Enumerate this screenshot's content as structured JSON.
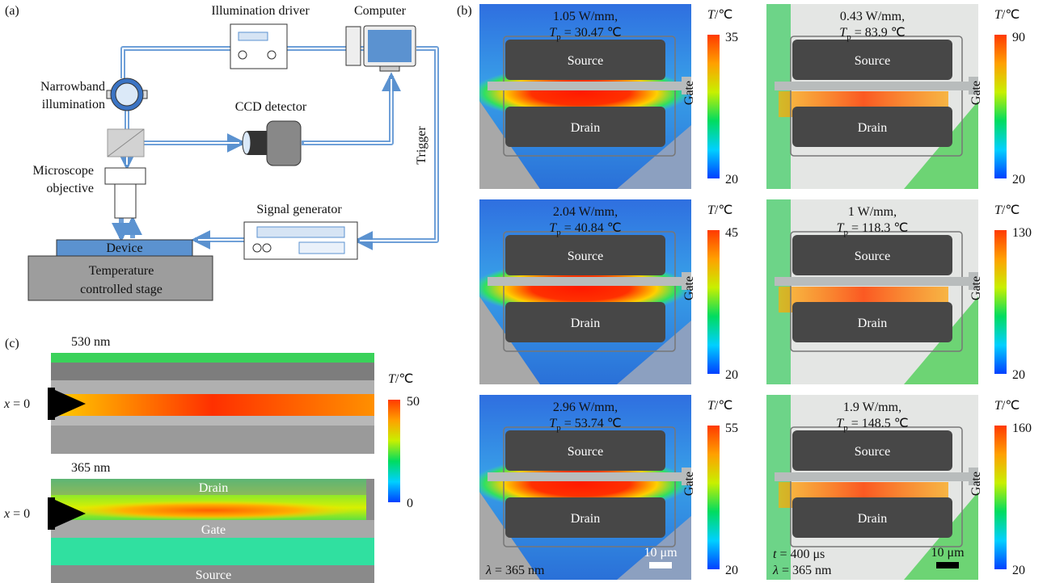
{
  "panel_a": {
    "label": "(a)",
    "illumination_driver": "Illumination driver",
    "computer": "Computer",
    "illumination": [
      "Narrowband",
      "illumination"
    ],
    "ccd_detector": "CCD detector",
    "trigger": "Trigger",
    "objective": [
      "Microscope",
      "objective"
    ],
    "signal_generator": "Signal generator",
    "device": "Device",
    "stage": [
      "Temperature",
      "controlled stage"
    ]
  },
  "panel_b": {
    "label": "(b)",
    "images": [
      {
        "power": "1.05 W/mm,",
        "tp": {
          "symbol": "T",
          "subscript": "p",
          "value": "= 30.47 ℃"
        },
        "source": "Source",
        "drain": "Drain",
        "gate": "Gate",
        "colorbar": {
          "symbol": "T",
          "unit": "/℃",
          "max": 35,
          "min": 20
        }
      },
      {
        "power": "0.43 W/mm,",
        "tp": {
          "symbol": "T",
          "subscript": "p",
          "value": "= 83.9 ℃"
        },
        "source": "Source",
        "drain": "Drain",
        "gate": "Gate",
        "colorbar": {
          "symbol": "T",
          "unit": "/℃",
          "max": 90,
          "min": 20
        }
      },
      {
        "power": "2.04 W/mm,",
        "tp": {
          "symbol": "T",
          "subscript": "p",
          "value": "= 40.84 ℃"
        },
        "source": "Source",
        "drain": "Drain",
        "gate": "Gate",
        "colorbar": {
          "symbol": "T",
          "unit": "/℃",
          "max": 45,
          "min": 20
        }
      },
      {
        "power": "1 W/mm,",
        "tp": {
          "symbol": "T",
          "subscript": "p",
          "value": "= 118.3 ℃"
        },
        "source": "Source",
        "drain": "Drain",
        "gate": "Gate",
        "colorbar": {
          "symbol": "T",
          "unit": "/℃",
          "max": 130,
          "min": 20
        }
      },
      {
        "power": "2.96 W/mm,",
        "tp": {
          "symbol": "T",
          "subscript": "p",
          "value": "= 53.74 ℃"
        },
        "source": "Source",
        "drain": "Drain",
        "gate": "Gate",
        "colorbar": {
          "symbol": "T",
          "unit": "/℃",
          "max": 55,
          "min": 20
        }
      },
      {
        "power": "1.9 W/mm,",
        "tp": {
          "symbol": "T",
          "subscript": "p",
          "value": "= 148.5 ℃"
        },
        "source": "Source",
        "drain": "Drain",
        "gate": "Gate",
        "colorbar": {
          "symbol": "T",
          "unit": "/℃",
          "max": 160,
          "min": 20
        }
      }
    ],
    "wavelength_left": {
      "symbol": "λ",
      "value": "= 365 nm"
    },
    "scale_left": "10 μm",
    "time_right": {
      "symbol": "t",
      "value": "= 400 μs"
    },
    "wavelength_right": {
      "symbol": "λ",
      "value": "= 365 nm"
    },
    "scale_right": "10 μm"
  },
  "panel_c": {
    "label": "(c)",
    "top_wavelength": "530 nm",
    "bottom_wavelength": "365 nm",
    "x_top": {
      "symbol": "x",
      "value": "= 0"
    },
    "x_bottom": {
      "symbol": "x",
      "value": "= 0"
    },
    "drain": "Drain",
    "gate": "Gate",
    "source": "Source",
    "colorbar": {
      "symbol": "T",
      "unit": "/℃",
      "max": 50,
      "min": 0
    }
  }
}
